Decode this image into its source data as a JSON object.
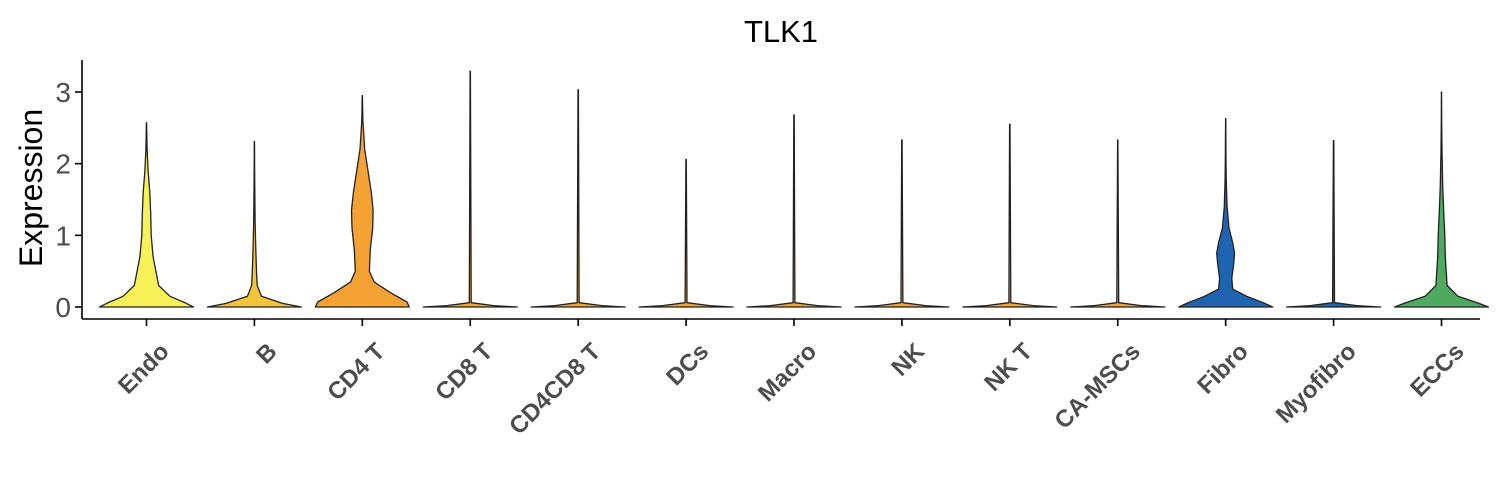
{
  "chart_data": {
    "type": "violin",
    "title": "TLK1",
    "xlabel": "",
    "ylabel": "Expression",
    "ylim": [
      -0.15,
      3.45
    ],
    "yticks": [
      0,
      1,
      2,
      3
    ],
    "grid": false,
    "legend": "none",
    "categories": [
      "Endo",
      "B",
      "CD4 T",
      "CD8 T",
      "CD4CD8 T",
      "DCs",
      "Macro",
      "NK",
      "NK T",
      "CA-MSCs",
      "Fibro",
      "Myofibro",
      "ECCs"
    ],
    "colors": [
      "#F7F056",
      "#F2C33B",
      "#F4A233",
      "#F4A233",
      "#F4A233",
      "#F4A233",
      "#F4A233",
      "#F4A233",
      "#F4A233",
      "#F4A233",
      "#1E64B0",
      "#1E64B0",
      "#4DAA5F"
    ],
    "max_values": [
      2.57,
      2.31,
      2.95,
      3.29,
      3.03,
      2.06,
      2.68,
      2.33,
      2.55,
      2.33,
      2.63,
      2.32,
      3.0
    ],
    "density_profiles": [
      [
        [
          0,
          1.0
        ],
        [
          0.05,
          0.85
        ],
        [
          0.15,
          0.5
        ],
        [
          0.3,
          0.26
        ],
        [
          0.5,
          0.2
        ],
        [
          0.7,
          0.14
        ],
        [
          1.0,
          0.1
        ],
        [
          1.3,
          0.09
        ],
        [
          1.6,
          0.07
        ],
        [
          1.9,
          0.035
        ],
        [
          2.2,
          0.012
        ],
        [
          2.57,
          0.002
        ]
      ],
      [
        [
          0,
          1.0
        ],
        [
          0.05,
          0.6
        ],
        [
          0.15,
          0.15
        ],
        [
          0.3,
          0.06
        ],
        [
          0.5,
          0.045
        ],
        [
          0.8,
          0.03
        ],
        [
          1.2,
          0.015
        ],
        [
          1.8,
          0.006
        ],
        [
          2.31,
          0.002
        ]
      ],
      [
        [
          0,
          1.0
        ],
        [
          0.07,
          0.95
        ],
        [
          0.2,
          0.6
        ],
        [
          0.35,
          0.25
        ],
        [
          0.5,
          0.15
        ],
        [
          0.8,
          0.17
        ],
        [
          1.1,
          0.22
        ],
        [
          1.35,
          0.23
        ],
        [
          1.6,
          0.19
        ],
        [
          1.9,
          0.12
        ],
        [
          2.2,
          0.05
        ],
        [
          2.6,
          0.012
        ],
        [
          2.95,
          0.002
        ]
      ],
      [
        [
          0,
          1.0
        ],
        [
          0.02,
          0.5
        ],
        [
          0.06,
          0.02
        ],
        [
          3.29,
          0.004
        ]
      ],
      [
        [
          0,
          1.0
        ],
        [
          0.02,
          0.5
        ],
        [
          0.06,
          0.02
        ],
        [
          3.03,
          0.004
        ]
      ],
      [
        [
          0,
          1.0
        ],
        [
          0.02,
          0.5
        ],
        [
          0.06,
          0.02
        ],
        [
          2.06,
          0.004
        ]
      ],
      [
        [
          0,
          1.0
        ],
        [
          0.02,
          0.5
        ],
        [
          0.06,
          0.02
        ],
        [
          2.68,
          0.004
        ]
      ],
      [
        [
          0,
          1.0
        ],
        [
          0.02,
          0.5
        ],
        [
          0.06,
          0.02
        ],
        [
          2.33,
          0.004
        ]
      ],
      [
        [
          0,
          1.0
        ],
        [
          0.02,
          0.5
        ],
        [
          0.06,
          0.02
        ],
        [
          2.55,
          0.004
        ]
      ],
      [
        [
          0,
          1.0
        ],
        [
          0.02,
          0.5
        ],
        [
          0.06,
          0.02
        ],
        [
          2.33,
          0.004
        ]
      ],
      [
        [
          0,
          1.0
        ],
        [
          0.06,
          0.8
        ],
        [
          0.15,
          0.45
        ],
        [
          0.25,
          0.15
        ],
        [
          0.4,
          0.13
        ],
        [
          0.6,
          0.17
        ],
        [
          0.75,
          0.19
        ],
        [
          0.9,
          0.15
        ],
        [
          1.1,
          0.07
        ],
        [
          1.4,
          0.03
        ],
        [
          1.8,
          0.012
        ],
        [
          2.2,
          0.005
        ],
        [
          2.63,
          0.002
        ]
      ],
      [
        [
          0,
          1.0
        ],
        [
          0.02,
          0.5
        ],
        [
          0.06,
          0.02
        ],
        [
          2.32,
          0.004
        ]
      ],
      [
        [
          0,
          1.0
        ],
        [
          0.05,
          0.8
        ],
        [
          0.15,
          0.35
        ],
        [
          0.3,
          0.12
        ],
        [
          0.5,
          0.1
        ],
        [
          0.7,
          0.08
        ],
        [
          1.0,
          0.07
        ],
        [
          1.3,
          0.05
        ],
        [
          1.7,
          0.025
        ],
        [
          2.2,
          0.01
        ],
        [
          2.6,
          0.004
        ],
        [
          3.0,
          0.002
        ]
      ]
    ]
  }
}
